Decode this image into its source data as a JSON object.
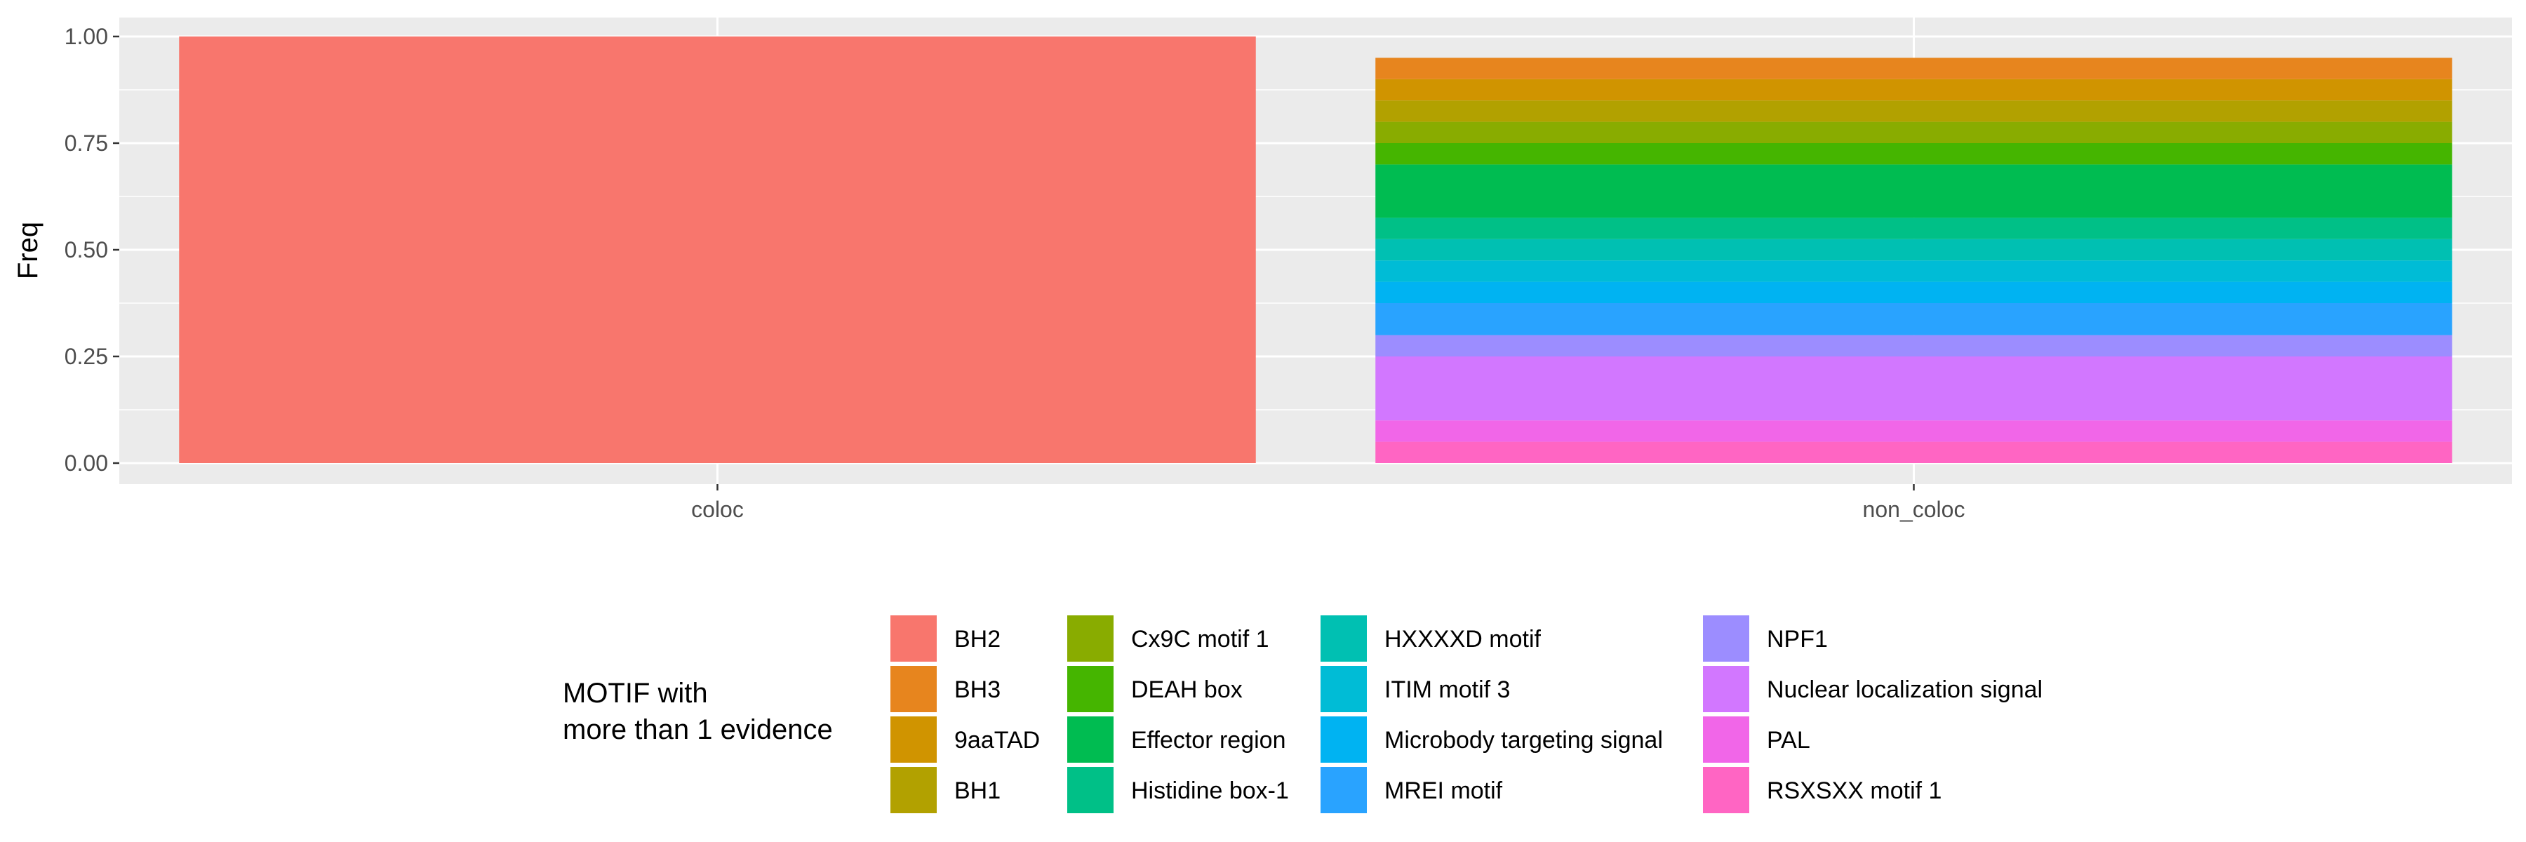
{
  "chart_data": {
    "type": "bar",
    "stacked": true,
    "position": "fill",
    "categories": [
      "coloc",
      "non_coloc"
    ],
    "xlabel": "",
    "ylabel": "Freq",
    "ylim": [
      0,
      1
    ],
    "yticks": [
      "0.00",
      "0.25",
      "0.50",
      "0.75",
      "1.00"
    ],
    "grid": true,
    "legend_position": "bottom",
    "legend_title": [
      "MOTIF with",
      "more than 1 evidence"
    ],
    "series": [
      {
        "name": "BH2",
        "color": "#F8766D",
        "values": [
          1.0,
          0.0
        ]
      },
      {
        "name": "BH3",
        "color": "#E7851E",
        "values": [
          0.0,
          0.05
        ]
      },
      {
        "name": "9aaTAD",
        "color": "#D09400",
        "values": [
          0.0,
          0.05
        ]
      },
      {
        "name": "BH1",
        "color": "#B2A100",
        "values": [
          0.0,
          0.05
        ]
      },
      {
        "name": "Cx9C motif 1",
        "color": "#89AC00",
        "values": [
          0.0,
          0.05
        ]
      },
      {
        "name": "DEAH box",
        "color": "#45B500",
        "values": [
          0.0,
          0.05
        ]
      },
      {
        "name": "Effector region",
        "color": "#00BC51",
        "values": [
          0.0,
          0.125
        ]
      },
      {
        "name": "Histidine box-1",
        "color": "#00C087",
        "values": [
          0.0,
          0.05
        ]
      },
      {
        "name": "HXXXXD motif",
        "color": "#00C0B2",
        "values": [
          0.0,
          0.05
        ]
      },
      {
        "name": "ITIM motif 3",
        "color": "#00BCD6",
        "values": [
          0.0,
          0.05
        ]
      },
      {
        "name": "Microbody targeting signal",
        "color": "#00B3F2",
        "values": [
          0.0,
          0.05
        ]
      },
      {
        "name": "MREI motif",
        "color": "#29A3FF",
        "values": [
          0.0,
          0.075
        ]
      },
      {
        "name": "NPF1",
        "color": "#9C8DFF",
        "values": [
          0.0,
          0.05
        ]
      },
      {
        "name": "Nuclear localization signal",
        "color": "#D277FF",
        "values": [
          0.0,
          0.15
        ]
      },
      {
        "name": "PAL",
        "color": "#F166E8",
        "values": [
          0.0,
          0.05
        ]
      },
      {
        "name": "RSXSXX motif 1",
        "color": "#FF65C3",
        "values": [
          0.0,
          0.05
        ]
      }
    ]
  }
}
